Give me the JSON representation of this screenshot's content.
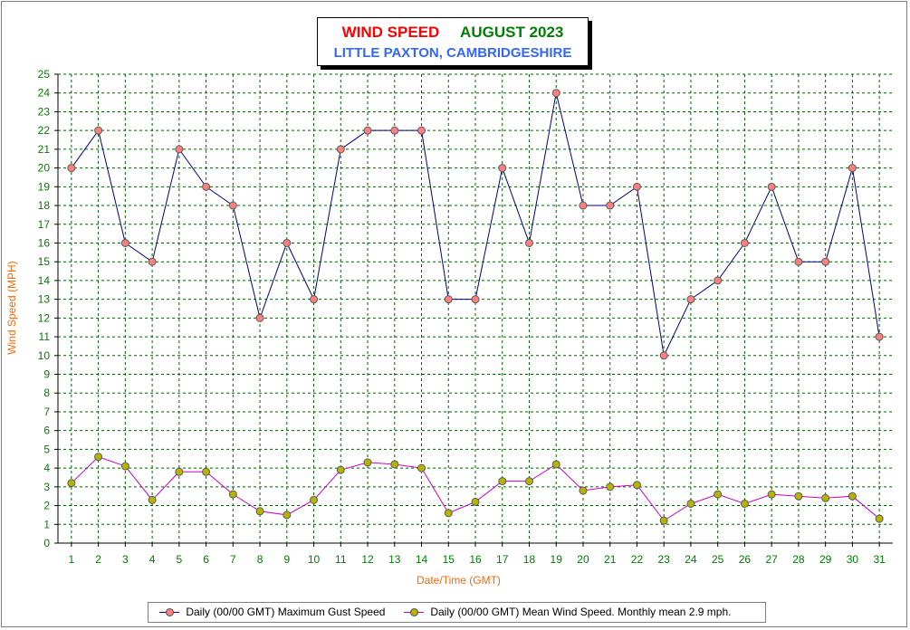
{
  "title": {
    "main": "WIND SPEED",
    "month": "AUGUST 2023",
    "subtitle": "LITTLE PAXTON, CAMBRIDGESHIRE"
  },
  "chart_data": {
    "type": "line",
    "xlabel": "Date/Time (GMT)",
    "ylabel": "Wind Speed (MPH)",
    "ylim": [
      0,
      25
    ],
    "yticks": [
      "0",
      "1",
      "2",
      "3",
      "4",
      "5",
      "6",
      "7",
      "8",
      "9",
      "10",
      "11",
      "12",
      "13",
      "14",
      "15",
      "16",
      "17",
      "18",
      "19",
      "20",
      "21",
      "22",
      "23",
      "24",
      "25"
    ],
    "categories": [
      "1",
      "2",
      "3",
      "4",
      "5",
      "6",
      "7",
      "8",
      "9",
      "10",
      "11",
      "12",
      "13",
      "14",
      "15",
      "16",
      "17",
      "18",
      "19",
      "20",
      "21",
      "22",
      "23",
      "24",
      "25",
      "26",
      "27",
      "28",
      "29",
      "30",
      "31"
    ],
    "grid": true,
    "legend_position": "bottom",
    "series": [
      {
        "name": "Daily (00/00 GMT) Maximum Gust Speed",
        "line_color": "#000080",
        "marker_color": "#ff7f7f",
        "values": [
          20,
          22,
          16,
          15,
          21,
          19,
          18,
          12,
          16,
          13,
          21,
          22,
          22,
          22,
          13,
          13,
          20,
          16,
          24,
          18,
          18,
          19,
          10,
          13,
          14,
          16,
          19,
          15,
          15,
          20,
          11
        ]
      },
      {
        "name": "Daily (00/00 GMT) Mean Wind Speed. Monthly mean 2.9 mph.",
        "line_color": "#cc00cc",
        "marker_color": "#b5b500",
        "values": [
          3.2,
          4.6,
          4.1,
          2.3,
          3.8,
          3.8,
          2.6,
          1.7,
          1.5,
          2.3,
          3.9,
          4.3,
          4.2,
          4.0,
          1.6,
          2.2,
          3.3,
          3.3,
          4.2,
          2.8,
          3.0,
          3.1,
          1.2,
          2.1,
          2.6,
          2.1,
          2.6,
          2.5,
          2.4,
          2.5,
          1.3
        ]
      }
    ]
  },
  "colors": {
    "grid": "#006400",
    "axis_tick_labels_x": "#008000",
    "axis_tick_labels_y": "#008000",
    "axis_titles": "#ff6600"
  }
}
